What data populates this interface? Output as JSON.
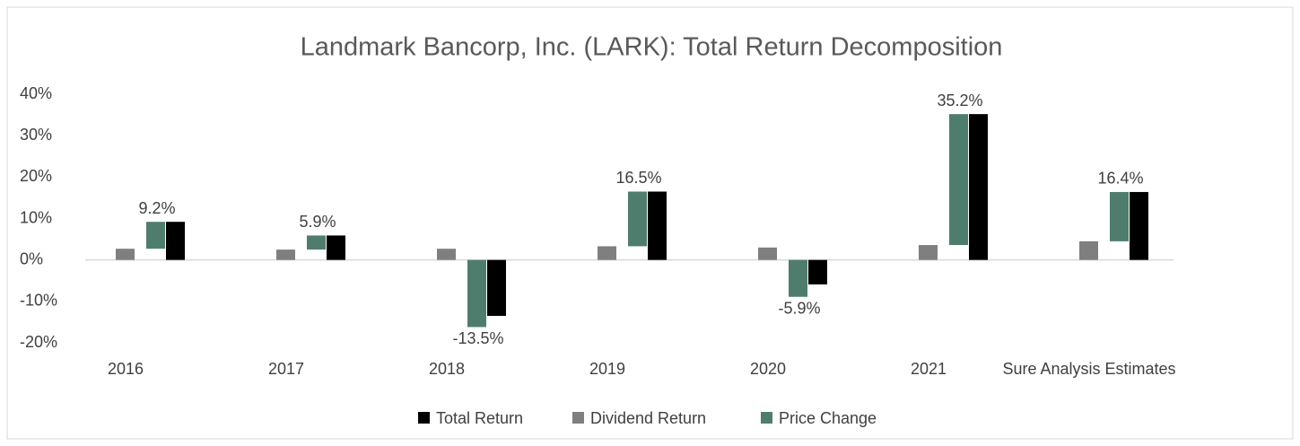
{
  "chart_data": {
    "type": "bar",
    "title": "Landmark Bancorp, Inc. (LARK): Total Return Decomposition",
    "categories": [
      "2016",
      "2017",
      "2018",
      "2019",
      "2020",
      "2021",
      "Sure Analysis Estimates"
    ],
    "series": [
      {
        "name": "Total Return",
        "color": "#000000",
        "values": [
          9.2,
          5.9,
          -13.5,
          16.5,
          -5.9,
          35.2,
          16.4
        ],
        "value_labels": [
          "9.2%",
          "5.9%",
          "-13.5%",
          "16.5%",
          "-5.9%",
          "35.2%",
          "16.4%"
        ]
      },
      {
        "name": "Dividend Return",
        "color": "#7f7f7f",
        "values": [
          2.7,
          2.5,
          2.7,
          3.3,
          3.0,
          3.6,
          4.5
        ]
      },
      {
        "name": "Price Change",
        "color": "#4e7d6e",
        "values": [
          6.5,
          3.4,
          -16.2,
          13.2,
          -8.9,
          31.6,
          11.9
        ]
      }
    ],
    "ylim": [
      -20,
      40
    ],
    "yticks": [
      {
        "value": -20,
        "label": "-20%"
      },
      {
        "value": -10,
        "label": "-10%"
      },
      {
        "value": 0,
        "label": "0%"
      },
      {
        "value": 10,
        "label": "10%"
      },
      {
        "value": 20,
        "label": "20%"
      },
      {
        "value": 30,
        "label": "30%"
      },
      {
        "value": 40,
        "label": "40%"
      }
    ],
    "legend": "bottom"
  }
}
